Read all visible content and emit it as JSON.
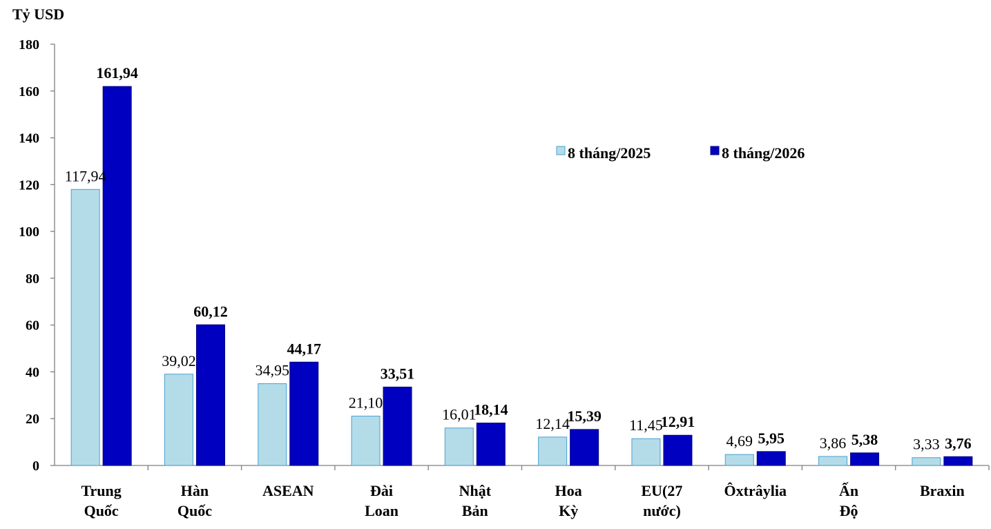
{
  "chart_data": {
    "type": "bar",
    "unit_label": "Tỷ USD",
    "ylim": [
      0,
      180
    ],
    "yticks": [
      "0",
      "20",
      "40",
      "60",
      "80",
      "100",
      "120",
      "140",
      "160",
      "180"
    ],
    "categories": [
      [
        "Trung",
        "Quốc"
      ],
      [
        "Hàn",
        "Quốc"
      ],
      [
        "ASEAN"
      ],
      [
        "Đài",
        "Loan"
      ],
      [
        "Nhật",
        "Bản"
      ],
      [
        "Hoa",
        "Kỳ"
      ],
      [
        "EU(27",
        "nước)"
      ],
      [
        "Ôxtrâylia"
      ],
      [
        "Ấn",
        "Độ"
      ],
      [
        "Braxin"
      ]
    ],
    "series": [
      {
        "name": "8 tháng/2025",
        "color": "#b4dce8",
        "values": [
          117.94,
          39.02,
          34.95,
          21.1,
          16.01,
          12.14,
          11.45,
          4.69,
          3.86,
          3.33
        ],
        "labels": [
          "117,94",
          "39,02",
          "34,95",
          "21,10",
          "16,01",
          "12,14",
          "11,45",
          "4,69",
          "3,86",
          "3,33"
        ]
      },
      {
        "name": "8 tháng/2026",
        "color": "#0000c0",
        "values": [
          161.94,
          60.12,
          44.17,
          33.51,
          18.14,
          15.39,
          12.91,
          5.95,
          5.38,
          3.76
        ],
        "labels": [
          "161,94",
          "60,12",
          "44,17",
          "33,51",
          "18,14",
          "15,39",
          "12,91",
          "5,95",
          "5,38",
          "3,76"
        ]
      }
    ],
    "legend_position": "top-right",
    "grid": false
  }
}
